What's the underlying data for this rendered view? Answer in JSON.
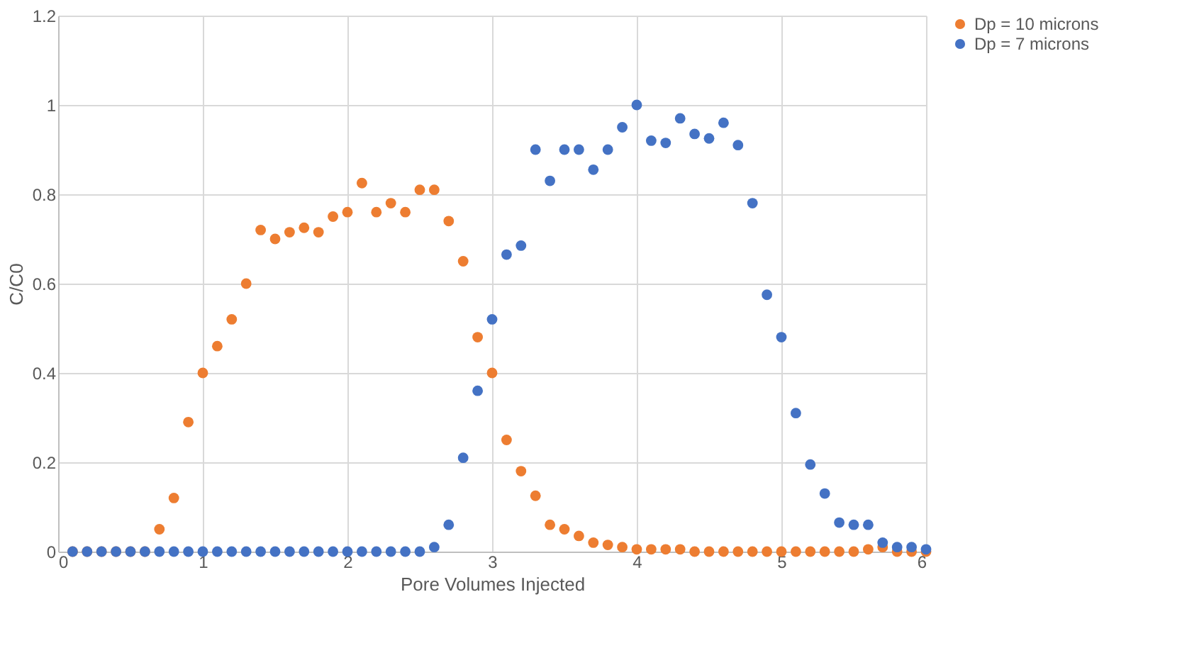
{
  "chart_data": {
    "type": "scatter",
    "xlabel": "Pore Volumes Injected",
    "ylabel": "C/C0",
    "x": [
      0.1,
      0.2,
      0.3,
      0.4,
      0.5,
      0.6,
      0.7,
      0.8,
      0.9,
      1.0,
      1.1,
      1.2,
      1.3,
      1.4,
      1.5,
      1.6,
      1.7,
      1.8,
      1.9,
      2.0,
      2.1,
      2.2,
      2.3,
      2.4,
      2.5,
      2.6,
      2.7,
      2.8,
      2.9,
      3.0,
      3.1,
      3.2,
      3.3,
      3.4,
      3.5,
      3.6,
      3.7,
      3.8,
      3.9,
      4.0,
      4.1,
      4.2,
      4.3,
      4.4,
      4.5,
      4.6,
      4.7,
      4.8,
      4.9,
      5.0,
      5.1,
      5.2,
      5.3,
      5.4,
      5.5,
      5.6,
      5.7,
      5.8,
      5.9,
      6.0
    ],
    "series": [
      {
        "name": "Dp = 10 microns",
        "color": "#ed7d31",
        "values": [
          0,
          0,
          0,
          0,
          0,
          0,
          0.05,
          0.12,
          0.29,
          0.4,
          0.46,
          0.52,
          0.6,
          0.72,
          0.7,
          0.715,
          0.725,
          0.715,
          0.75,
          0.76,
          0.825,
          0.76,
          0.78,
          0.76,
          0.81,
          0.81,
          0.74,
          0.65,
          0.48,
          0.4,
          0.25,
          0.18,
          0.125,
          0.06,
          0.05,
          0.035,
          0.02,
          0.015,
          0.01,
          0.005,
          0.005,
          0.005,
          0.005,
          0,
          0,
          0,
          0,
          0,
          0,
          0,
          0,
          0,
          0,
          0,
          0,
          0.005,
          0.01,
          0,
          0,
          0
        ]
      },
      {
        "name": "Dp = 7 microns",
        "color": "#4472c4",
        "values": [
          0,
          0,
          0,
          0,
          0,
          0,
          0,
          0,
          0,
          0,
          0,
          0,
          0,
          0,
          0,
          0,
          0,
          0,
          0,
          0,
          0,
          0,
          0,
          0,
          0,
          0.01,
          0.06,
          0.21,
          0.36,
          0.52,
          0.665,
          0.685,
          0.9,
          0.83,
          0.9,
          0.9,
          0.855,
          0.9,
          0.95,
          1.0,
          0.92,
          0.915,
          0.97,
          0.935,
          0.925,
          0.96,
          0.91,
          0.78,
          0.575,
          0.48,
          0.31,
          0.195,
          0.13,
          0.065,
          0.06,
          0.06,
          0.02,
          0.01,
          0.01,
          0.005
        ]
      }
    ],
    "xlim": [
      0,
      6
    ],
    "xticks": [
      0,
      1,
      2,
      3,
      4,
      5,
      6
    ],
    "ylim": [
      0,
      1.2
    ],
    "yticks": [
      0,
      0.2,
      0.4,
      0.6,
      0.8,
      1,
      1.2
    ],
    "grid": true,
    "legend": "right",
    "marker": "circle"
  }
}
